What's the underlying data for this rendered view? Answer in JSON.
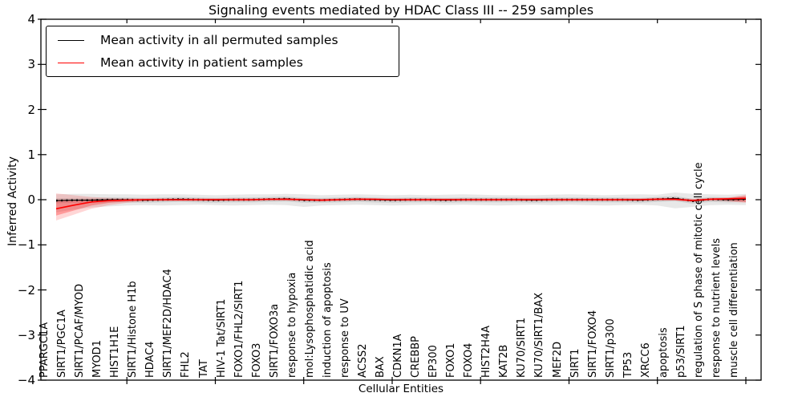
{
  "chart_data": {
    "type": "line",
    "title": "Signaling events mediated by HDAC Class III -- 259 samples",
    "xlabel": "Cellular Entities",
    "ylabel": "Inferred Activity",
    "ylim": [
      -4,
      4
    ],
    "yticks": [
      -4,
      -3,
      -2,
      -1,
      0,
      1,
      2,
      3,
      4
    ],
    "xtick_indices": [
      4,
      9,
      14,
      19,
      24,
      29,
      34,
      39
    ],
    "grid": false,
    "legend_position": "upper left",
    "categories": [
      "PPARGC1A",
      "SIRT1/PGC1A",
      "SIRT1/PCAF/MYOD",
      "MYOD1",
      "HIST1H1E",
      "SIRT1/Histone H1b",
      "HDAC4",
      "SIRT1/MEF2D/HDAC4",
      "FHL2",
      "TAT",
      "HIV-1 Tat/SIRT1",
      "FOXO1/FHL2/SIRT1",
      "FOXO3",
      "SIRT1/FOXO3a",
      "response to hypoxia",
      "mol:Lysophosphatidic acid",
      "induction of apoptosis",
      "response to UV",
      "ACSS2",
      "BAX",
      "CDKN1A",
      "CREBBP",
      "EP300",
      "FOXO1",
      "FOXO4",
      "HIST2H4A",
      "KAT2B",
      "KU70/SIRT1",
      "KU70/SIRT1/BAX",
      "MEF2D",
      "SIRT1",
      "SIRT1/FOXO4",
      "SIRT1/p300",
      "TP53",
      "XRCC6",
      "apoptosis",
      "p53/SIRT1",
      "regulation of S phase of mitotic cell cycle",
      "response to nutrient levels",
      "muscle cell differentiation"
    ],
    "series": [
      {
        "name": "Mean activity in all permuted samples",
        "color": "#000000",
        "values": [
          -0.02,
          -0.01,
          -0.01,
          0.0,
          0.0,
          -0.01,
          0.0,
          0.01,
          0.0,
          -0.01,
          0.0,
          0.0,
          0.01,
          0.02,
          -0.01,
          -0.01,
          0.0,
          0.01,
          0.0,
          -0.01,
          0.0,
          0.0,
          -0.01,
          0.0,
          0.0,
          0.0,
          0.0,
          -0.01,
          0.0,
          0.0,
          0.0,
          0.0,
          0.0,
          -0.01,
          0.01,
          0.03,
          -0.03,
          0.01,
          0.0,
          0.01
        ]
      },
      {
        "name": "Mean activity in patient samples",
        "color": "#ff0000",
        "values": [
          -0.2,
          -0.12,
          -0.05,
          -0.02,
          -0.01,
          0.0,
          0.0,
          0.0,
          0.0,
          0.0,
          0.0,
          0.0,
          0.01,
          0.01,
          0.0,
          -0.01,
          0.0,
          0.01,
          0.01,
          0.0,
          0.0,
          0.0,
          0.0,
          0.0,
          0.0,
          0.0,
          0.0,
          0.0,
          0.0,
          0.0,
          0.0,
          0.0,
          0.0,
          0.0,
          0.01,
          0.01,
          -0.02,
          0.01,
          0.02,
          0.03
        ]
      }
    ],
    "bands": [
      {
        "name": "permuted-std-outer-band",
        "color": "#000000",
        "opacity": 0.09,
        "upper": [
          0.12,
          0.13,
          0.13,
          0.12,
          0.12,
          0.11,
          0.12,
          0.12,
          0.11,
          0.1,
          0.11,
          0.12,
          0.12,
          0.13,
          0.12,
          0.1,
          0.11,
          0.12,
          0.11,
          0.1,
          0.11,
          0.1,
          0.11,
          0.12,
          0.11,
          0.1,
          0.1,
          0.1,
          0.11,
          0.12,
          0.11,
          0.1,
          0.11,
          0.12,
          0.11,
          0.16,
          0.13,
          0.12,
          0.11,
          0.13
        ],
        "lower": [
          -0.28,
          -0.22,
          -0.17,
          -0.15,
          -0.13,
          -0.12,
          -0.13,
          -0.12,
          -0.11,
          -0.12,
          -0.13,
          -0.12,
          -0.11,
          -0.12,
          -0.16,
          -0.13,
          -0.12,
          -0.11,
          -0.12,
          -0.13,
          -0.12,
          -0.11,
          -0.12,
          -0.11,
          -0.12,
          -0.13,
          -0.12,
          -0.11,
          -0.12,
          -0.11,
          -0.12,
          -0.13,
          -0.12,
          -0.11,
          -0.13,
          -0.19,
          -0.16,
          -0.12,
          -0.11,
          -0.12
        ]
      },
      {
        "name": "permuted-std-inner-band",
        "color": "#000000",
        "opacity": 0.1,
        "upper": [
          0.03,
          0.04,
          0.04,
          0.05,
          0.05,
          0.04,
          0.05,
          0.06,
          0.05,
          0.04,
          0.05,
          0.05,
          0.06,
          0.07,
          0.04,
          0.04,
          0.05,
          0.06,
          0.05,
          0.04,
          0.05,
          0.05,
          0.04,
          0.05,
          0.05,
          0.05,
          0.05,
          0.04,
          0.05,
          0.05,
          0.05,
          0.05,
          0.05,
          0.04,
          0.06,
          0.08,
          0.02,
          0.06,
          0.05,
          0.06
        ],
        "lower": [
          -0.08,
          -0.07,
          -0.07,
          -0.06,
          -0.06,
          -0.07,
          -0.06,
          -0.05,
          -0.06,
          -0.07,
          -0.06,
          -0.06,
          -0.05,
          -0.04,
          -0.07,
          -0.07,
          -0.06,
          -0.05,
          -0.06,
          -0.07,
          -0.06,
          -0.06,
          -0.07,
          -0.06,
          -0.06,
          -0.06,
          -0.06,
          -0.07,
          -0.06,
          -0.06,
          -0.06,
          -0.06,
          -0.06,
          -0.07,
          -0.05,
          -0.03,
          -0.09,
          -0.05,
          -0.06,
          -0.05
        ]
      },
      {
        "name": "patient-std-outer-band",
        "color": "#ff0000",
        "opacity": 0.16,
        "upper": [
          0.14,
          0.1,
          0.06,
          0.04,
          0.03,
          0.03,
          0.03,
          0.03,
          0.03,
          0.03,
          0.03,
          0.03,
          0.03,
          0.04,
          0.03,
          0.02,
          0.03,
          0.04,
          0.03,
          0.03,
          0.03,
          0.03,
          0.03,
          0.03,
          0.03,
          0.03,
          0.03,
          0.03,
          0.03,
          0.03,
          0.03,
          0.03,
          0.03,
          0.03,
          0.04,
          0.04,
          0.02,
          0.04,
          0.05,
          0.11
        ],
        "lower": [
          -0.46,
          -0.33,
          -0.2,
          -0.12,
          -0.07,
          -0.04,
          -0.03,
          -0.03,
          -0.03,
          -0.03,
          -0.03,
          -0.03,
          -0.02,
          -0.02,
          -0.03,
          -0.04,
          -0.03,
          -0.02,
          -0.02,
          -0.03,
          -0.03,
          -0.03,
          -0.03,
          -0.03,
          -0.03,
          -0.03,
          -0.03,
          -0.03,
          -0.03,
          -0.03,
          -0.03,
          -0.03,
          -0.03,
          -0.03,
          -0.02,
          -0.02,
          -0.05,
          -0.02,
          -0.04,
          -0.07
        ]
      },
      {
        "name": "patient-std-inner-band",
        "color": "#ff0000",
        "opacity": 0.28,
        "upper": [
          0.0,
          0.0,
          0.01,
          0.01,
          0.01,
          0.01,
          0.02,
          0.02,
          0.02,
          0.02,
          0.02,
          0.02,
          0.02,
          0.03,
          0.02,
          0.01,
          0.02,
          0.03,
          0.02,
          0.02,
          0.02,
          0.02,
          0.02,
          0.02,
          0.02,
          0.02,
          0.02,
          0.02,
          0.02,
          0.02,
          0.02,
          0.02,
          0.02,
          0.02,
          0.03,
          0.03,
          0.0,
          0.03,
          0.04,
          0.08
        ],
        "lower": [
          -0.35,
          -0.24,
          -0.13,
          -0.07,
          -0.04,
          -0.02,
          -0.02,
          -0.02,
          -0.02,
          -0.02,
          -0.02,
          -0.02,
          -0.01,
          -0.01,
          -0.02,
          -0.03,
          -0.02,
          -0.01,
          -0.01,
          -0.02,
          -0.02,
          -0.02,
          -0.02,
          -0.02,
          -0.02,
          -0.02,
          -0.02,
          -0.02,
          -0.02,
          -0.02,
          -0.02,
          -0.02,
          -0.02,
          -0.02,
          -0.01,
          -0.01,
          -0.04,
          -0.01,
          -0.02,
          -0.05
        ]
      }
    ]
  }
}
